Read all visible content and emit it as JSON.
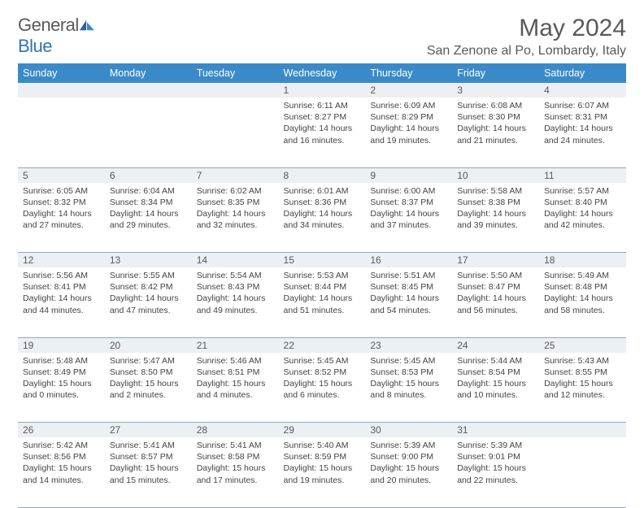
{
  "logo": {
    "word1": "General",
    "word2": "Blue"
  },
  "title": "May 2024",
  "location": "San Zenone al Po, Lombardy, Italy",
  "colors": {
    "header_bg": "#3a8ac9",
    "daynum_bg": "#ecf0f4",
    "rule": "#8faac2",
    "text": "#444444",
    "title": "#595959"
  },
  "weekdays": [
    "Sunday",
    "Monday",
    "Tuesday",
    "Wednesday",
    "Thursday",
    "Friday",
    "Saturday"
  ],
  "weeks": [
    [
      null,
      null,
      null,
      {
        "n": "1",
        "sr": "6:11 AM",
        "ss": "8:27 PM",
        "dh": "14",
        "dm": "16"
      },
      {
        "n": "2",
        "sr": "6:09 AM",
        "ss": "8:29 PM",
        "dh": "14",
        "dm": "19"
      },
      {
        "n": "3",
        "sr": "6:08 AM",
        "ss": "8:30 PM",
        "dh": "14",
        "dm": "21"
      },
      {
        "n": "4",
        "sr": "6:07 AM",
        "ss": "8:31 PM",
        "dh": "14",
        "dm": "24"
      }
    ],
    [
      {
        "n": "5",
        "sr": "6:05 AM",
        "ss": "8:32 PM",
        "dh": "14",
        "dm": "27"
      },
      {
        "n": "6",
        "sr": "6:04 AM",
        "ss": "8:34 PM",
        "dh": "14",
        "dm": "29"
      },
      {
        "n": "7",
        "sr": "6:02 AM",
        "ss": "8:35 PM",
        "dh": "14",
        "dm": "32"
      },
      {
        "n": "8",
        "sr": "6:01 AM",
        "ss": "8:36 PM",
        "dh": "14",
        "dm": "34"
      },
      {
        "n": "9",
        "sr": "6:00 AM",
        "ss": "8:37 PM",
        "dh": "14",
        "dm": "37"
      },
      {
        "n": "10",
        "sr": "5:58 AM",
        "ss": "8:38 PM",
        "dh": "14",
        "dm": "39"
      },
      {
        "n": "11",
        "sr": "5:57 AM",
        "ss": "8:40 PM",
        "dh": "14",
        "dm": "42"
      }
    ],
    [
      {
        "n": "12",
        "sr": "5:56 AM",
        "ss": "8:41 PM",
        "dh": "14",
        "dm": "44"
      },
      {
        "n": "13",
        "sr": "5:55 AM",
        "ss": "8:42 PM",
        "dh": "14",
        "dm": "47"
      },
      {
        "n": "14",
        "sr": "5:54 AM",
        "ss": "8:43 PM",
        "dh": "14",
        "dm": "49"
      },
      {
        "n": "15",
        "sr": "5:53 AM",
        "ss": "8:44 PM",
        "dh": "14",
        "dm": "51"
      },
      {
        "n": "16",
        "sr": "5:51 AM",
        "ss": "8:45 PM",
        "dh": "14",
        "dm": "54"
      },
      {
        "n": "17",
        "sr": "5:50 AM",
        "ss": "8:47 PM",
        "dh": "14",
        "dm": "56"
      },
      {
        "n": "18",
        "sr": "5:49 AM",
        "ss": "8:48 PM",
        "dh": "14",
        "dm": "58"
      }
    ],
    [
      {
        "n": "19",
        "sr": "5:48 AM",
        "ss": "8:49 PM",
        "dh": "15",
        "dm": "0"
      },
      {
        "n": "20",
        "sr": "5:47 AM",
        "ss": "8:50 PM",
        "dh": "15",
        "dm": "2"
      },
      {
        "n": "21",
        "sr": "5:46 AM",
        "ss": "8:51 PM",
        "dh": "15",
        "dm": "4"
      },
      {
        "n": "22",
        "sr": "5:45 AM",
        "ss": "8:52 PM",
        "dh": "15",
        "dm": "6"
      },
      {
        "n": "23",
        "sr": "5:45 AM",
        "ss": "8:53 PM",
        "dh": "15",
        "dm": "8"
      },
      {
        "n": "24",
        "sr": "5:44 AM",
        "ss": "8:54 PM",
        "dh": "15",
        "dm": "10"
      },
      {
        "n": "25",
        "sr": "5:43 AM",
        "ss": "8:55 PM",
        "dh": "15",
        "dm": "12"
      }
    ],
    [
      {
        "n": "26",
        "sr": "5:42 AM",
        "ss": "8:56 PM",
        "dh": "15",
        "dm": "14"
      },
      {
        "n": "27",
        "sr": "5:41 AM",
        "ss": "8:57 PM",
        "dh": "15",
        "dm": "15"
      },
      {
        "n": "28",
        "sr": "5:41 AM",
        "ss": "8:58 PM",
        "dh": "15",
        "dm": "17"
      },
      {
        "n": "29",
        "sr": "5:40 AM",
        "ss": "8:59 PM",
        "dh": "15",
        "dm": "19"
      },
      {
        "n": "30",
        "sr": "5:39 AM",
        "ss": "9:00 PM",
        "dh": "15",
        "dm": "20"
      },
      {
        "n": "31",
        "sr": "5:39 AM",
        "ss": "9:01 PM",
        "dh": "15",
        "dm": "22"
      },
      null
    ]
  ],
  "labels": {
    "sunrise_prefix": "Sunrise: ",
    "sunset_prefix": "Sunset: ",
    "daylight_prefix": "Daylight: ",
    "hours_word": " hours",
    "and_word": "and ",
    "minutes_word": " minutes."
  }
}
